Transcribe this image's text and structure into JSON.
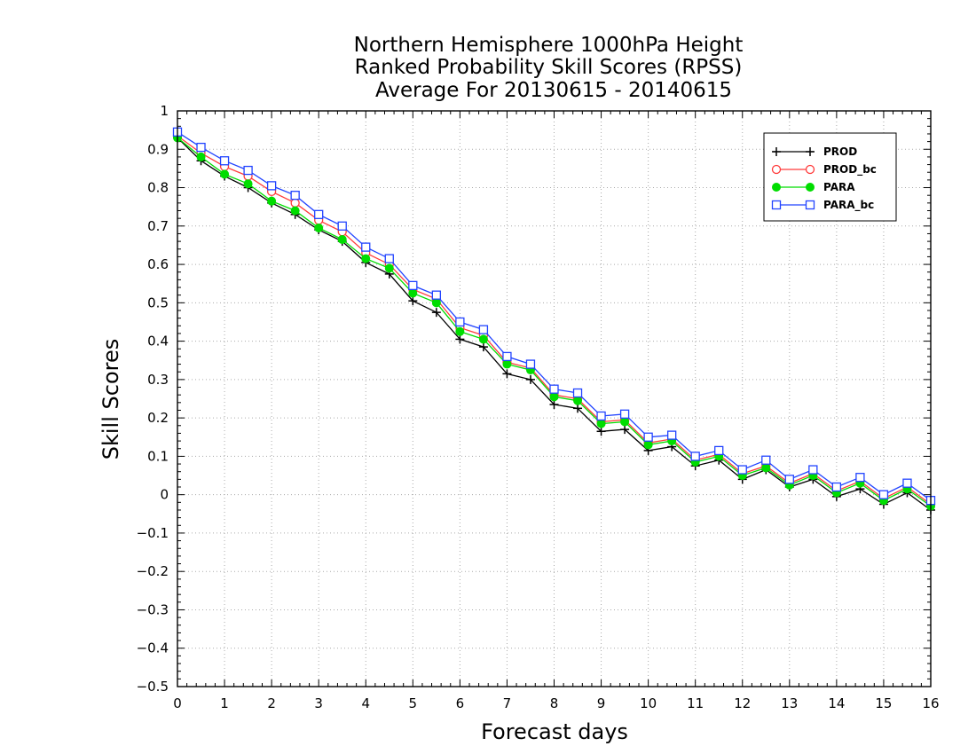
{
  "chart_data": {
    "type": "line",
    "title": [
      "Northern Hemisphere 1000hPa Height",
      "Ranked Probability Skill Scores (RPSS)",
      "Average For 20130615 - 20140615"
    ],
    "xlabel": "Forecast days",
    "ylabel": "Skill Scores",
    "xlim": [
      0,
      16
    ],
    "ylim": [
      -0.5,
      1
    ],
    "xticks": [
      "0",
      "1",
      "2",
      "3",
      "4",
      "5",
      "6",
      "7",
      "8",
      "9",
      "10",
      "11",
      "12",
      "13",
      "14",
      "15",
      "16"
    ],
    "yticks": [
      "−0.5",
      "−0.4",
      "−0.3",
      "−0.2",
      "−0.1",
      "0",
      "0.1",
      "0.2",
      "0.3",
      "0.4",
      "0.5",
      "0.6",
      "0.7",
      "0.8",
      "0.9",
      "1"
    ],
    "grid": true,
    "legend_position": "top-right",
    "x": [
      0,
      0.5,
      1,
      1.5,
      2,
      2.5,
      3,
      3.5,
      4,
      4.5,
      5,
      5.5,
      6,
      6.5,
      7,
      7.5,
      8,
      8.5,
      9,
      9.5,
      10,
      10.5,
      11,
      11.5,
      12,
      12.5,
      13,
      13.5,
      14,
      14.5,
      15,
      15.5,
      16
    ],
    "series": [
      {
        "name": "PROD",
        "color": "#000000",
        "marker": "plus",
        "values": [
          0.93,
          0.87,
          0.83,
          0.8,
          0.76,
          0.73,
          0.69,
          0.66,
          0.605,
          0.575,
          0.505,
          0.475,
          0.405,
          0.385,
          0.315,
          0.3,
          0.235,
          0.225,
          0.165,
          0.17,
          0.115,
          0.125,
          0.075,
          0.09,
          0.04,
          0.065,
          0.02,
          0.04,
          -0.005,
          0.015,
          -0.025,
          0.005,
          -0.04
        ]
      },
      {
        "name": "PROD_bc",
        "color": "#ff3b3b",
        "marker": "open-circle",
        "values": [
          0.935,
          0.89,
          0.855,
          0.83,
          0.79,
          0.76,
          0.715,
          0.685,
          0.63,
          0.6,
          0.535,
          0.51,
          0.435,
          0.415,
          0.345,
          0.33,
          0.26,
          0.25,
          0.19,
          0.195,
          0.135,
          0.145,
          0.09,
          0.105,
          0.055,
          0.075,
          0.03,
          0.055,
          0.01,
          0.035,
          -0.01,
          0.02,
          -0.025
        ]
      },
      {
        "name": "PARA",
        "color": "#00dd00",
        "marker": "filled-circle",
        "values": [
          0.93,
          0.88,
          0.835,
          0.81,
          0.765,
          0.74,
          0.695,
          0.665,
          0.615,
          0.59,
          0.525,
          0.5,
          0.425,
          0.405,
          0.34,
          0.325,
          0.255,
          0.245,
          0.185,
          0.19,
          0.13,
          0.14,
          0.085,
          0.1,
          0.05,
          0.07,
          0.025,
          0.05,
          0.005,
          0.03,
          -0.015,
          0.015,
          -0.03
        ]
      },
      {
        "name": "PARA_bc",
        "color": "#2244ff",
        "marker": "open-square",
        "values": [
          0.945,
          0.905,
          0.87,
          0.845,
          0.805,
          0.78,
          0.73,
          0.7,
          0.645,
          0.615,
          0.545,
          0.52,
          0.45,
          0.43,
          0.36,
          0.34,
          0.275,
          0.265,
          0.205,
          0.21,
          0.15,
          0.155,
          0.1,
          0.115,
          0.065,
          0.09,
          0.04,
          0.065,
          0.02,
          0.045,
          0.0,
          0.03,
          -0.015
        ]
      }
    ]
  }
}
